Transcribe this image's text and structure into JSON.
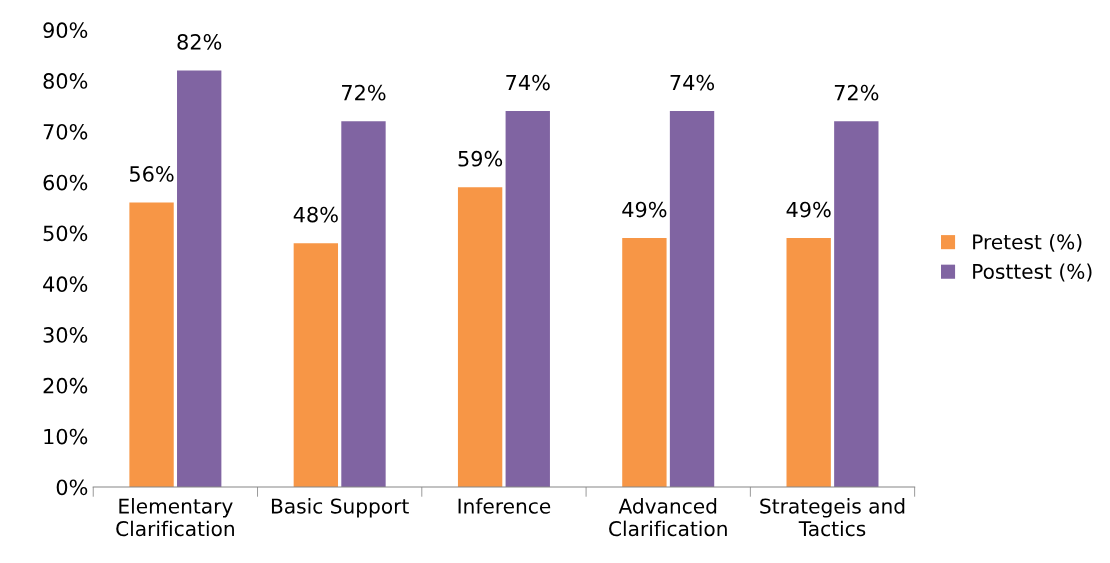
{
  "chart_data": {
    "type": "bar",
    "categories": [
      "Elementary\nClarification",
      "Basic Support",
      "Inference",
      "Advanced\nClarification",
      "Strategeis and\nTactics"
    ],
    "series": [
      {
        "name": "Pretest (%)",
        "color": "#f79646",
        "values": [
          56,
          48,
          59,
          49,
          49
        ],
        "value_labels": [
          "56%",
          "48%",
          "59%",
          "49%",
          "49%"
        ]
      },
      {
        "name": "Posttest (%)",
        "color": "#8064a2",
        "values": [
          82,
          72,
          74,
          74,
          72
        ],
        "value_labels": [
          "82%",
          "72%",
          "74%",
          "74%",
          "72%"
        ]
      }
    ],
    "ylim": [
      0,
      90
    ],
    "yticks": [
      {
        "value": 0,
        "label": "0%"
      },
      {
        "value": 10,
        "label": "10%"
      },
      {
        "value": 20,
        "label": "20%"
      },
      {
        "value": 30,
        "label": "30%"
      },
      {
        "value": 40,
        "label": "40%"
      },
      {
        "value": 50,
        "label": "50%"
      },
      {
        "value": 60,
        "label": "60%"
      },
      {
        "value": 70,
        "label": "70%"
      },
      {
        "value": 80,
        "label": "80%"
      },
      {
        "value": 90,
        "label": "90%"
      }
    ],
    "grid": false,
    "legend": "right"
  }
}
